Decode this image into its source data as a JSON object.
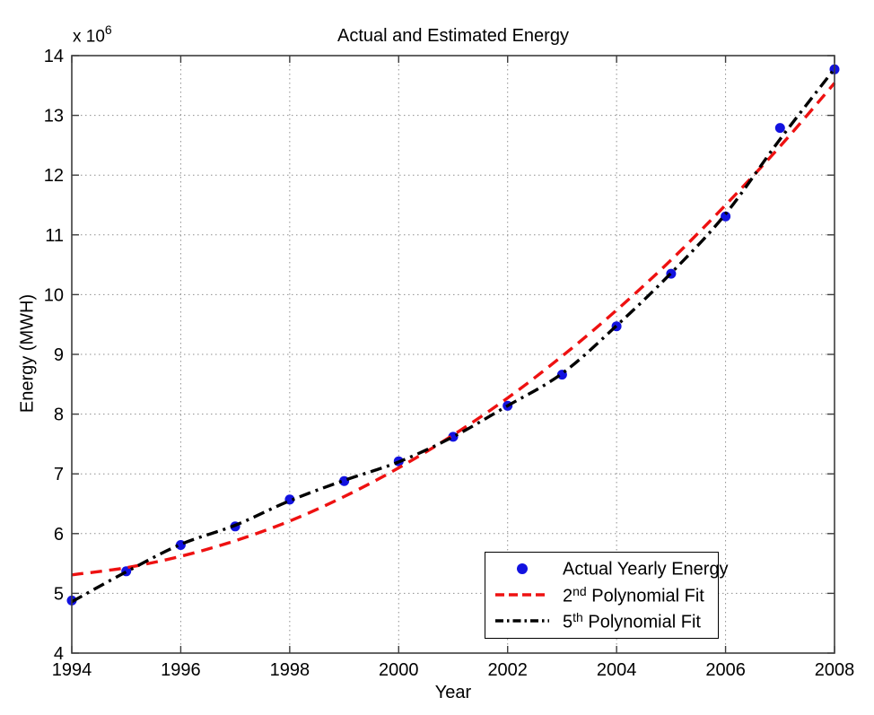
{
  "chart_data": {
    "type": "line",
    "title": "Actual and Estimated Energy",
    "xlabel": "Year",
    "ylabel": "Energy (MWH)",
    "y_multiplier_base": "x 10",
    "y_multiplier_exp": "6",
    "xlim": [
      1994,
      2008
    ],
    "ylim": [
      4,
      14
    ],
    "x_ticks": [
      1994,
      1996,
      1998,
      2000,
      2002,
      2004,
      2006,
      2008
    ],
    "y_ticks": [
      4,
      5,
      6,
      7,
      8,
      9,
      10,
      11,
      12,
      13,
      14
    ],
    "grid": true,
    "x": [
      1994,
      1995,
      1996,
      1997,
      1998,
      1999,
      2000,
      2001,
      2002,
      2003,
      2004,
      2005,
      2006,
      2007,
      2008
    ],
    "series": [
      {
        "name": "Actual Yearly Energy",
        "style": "scatter",
        "marker": "filled-circle",
        "color": "#1212e0",
        "values": [
          4.88,
          5.37,
          5.81,
          6.12,
          6.57,
          6.88,
          7.21,
          7.62,
          8.14,
          8.66,
          9.47,
          10.35,
          11.31,
          12.79,
          13.77
        ]
      },
      {
        "name": "2nd Polynomial Fit",
        "style": "dashed",
        "color": "#ee1111",
        "values": [
          5.31,
          5.43,
          5.62,
          5.88,
          6.21,
          6.62,
          7.1,
          7.65,
          8.27,
          8.97,
          9.74,
          10.58,
          11.5,
          12.48,
          13.54
        ]
      },
      {
        "name": "5th Polynomial Fit",
        "style": "dash-dot",
        "color": "#000000",
        "values": [
          4.86,
          5.36,
          5.82,
          6.14,
          6.55,
          6.89,
          7.2,
          7.62,
          8.14,
          8.68,
          9.48,
          10.36,
          11.35,
          12.6,
          13.78
        ]
      }
    ],
    "legend": {
      "position": "inside-lower-right",
      "items": [
        {
          "pre": "Actual Yearly Energy",
          "sup": "",
          "post": ""
        },
        {
          "pre": "2",
          "sup": "nd",
          "post": " Polynomial Fit"
        },
        {
          "pre": "5",
          "sup": "th",
          "post": " Polynomial Fit"
        }
      ]
    },
    "colors": {
      "background": "#ffffff",
      "axis": "#3d3d3d",
      "grid": "#8f8f8f",
      "actual": "#1212e0",
      "fit2": "#ee1111",
      "fit5": "#000000"
    }
  }
}
